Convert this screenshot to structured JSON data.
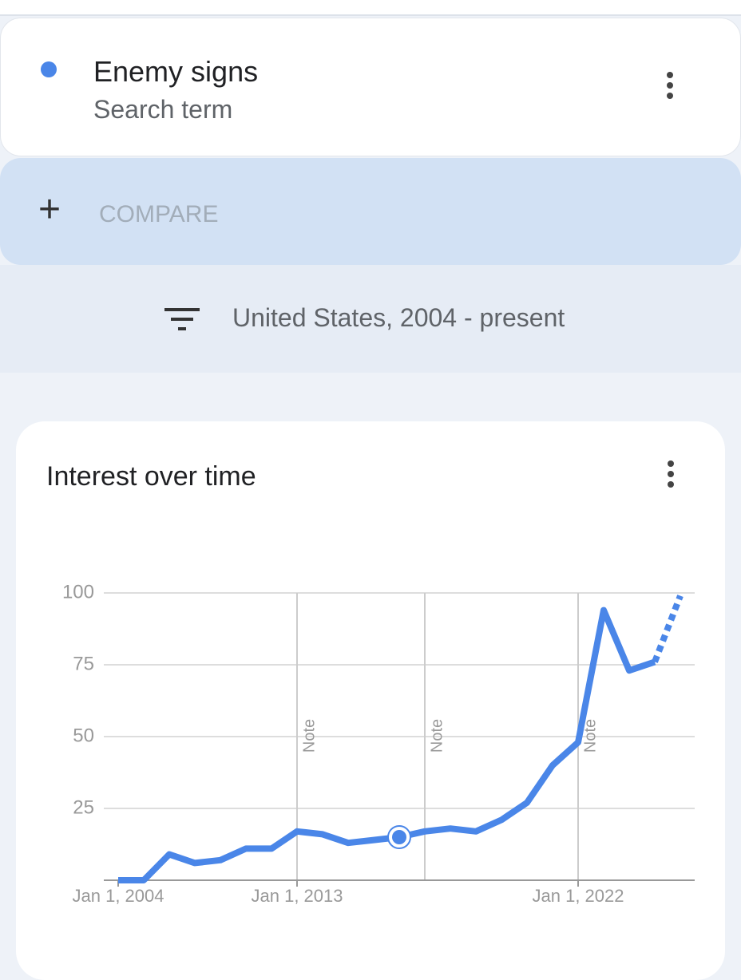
{
  "search_term": {
    "name": "Enemy signs",
    "kind": "Search term",
    "color": "#4a86e8"
  },
  "compare_label": "COMPARE",
  "filter_label": "United States, 2004 - present",
  "chart_data": {
    "type": "line",
    "title": "Interest over time",
    "categories": [
      "Jan 1, 2004",
      null,
      null,
      null,
      null,
      null,
      null,
      "Jan 1, 2013",
      null,
      null,
      null,
      null,
      null,
      null,
      null,
      null,
      null,
      null,
      "Jan 1, 2022",
      null,
      null,
      null,
      null
    ],
    "series": [
      {
        "color": "#4a86e8",
        "values": [
          0,
          0,
          9,
          6,
          7,
          11,
          11,
          17,
          16,
          13,
          14,
          15,
          17,
          18,
          17,
          21,
          27,
          40,
          48,
          94,
          73,
          76,
          99
        ]
      }
    ],
    "partial_last_segment": true,
    "highlight_index": 11,
    "notes": [
      {
        "label": "Note",
        "index": 7
      },
      {
        "label": "Note",
        "index": 12
      },
      {
        "label": "Note",
        "index": 18
      }
    ],
    "ylim": [
      0,
      100
    ],
    "yticks": [
      25,
      50,
      75,
      100
    ],
    "grid": true
  }
}
